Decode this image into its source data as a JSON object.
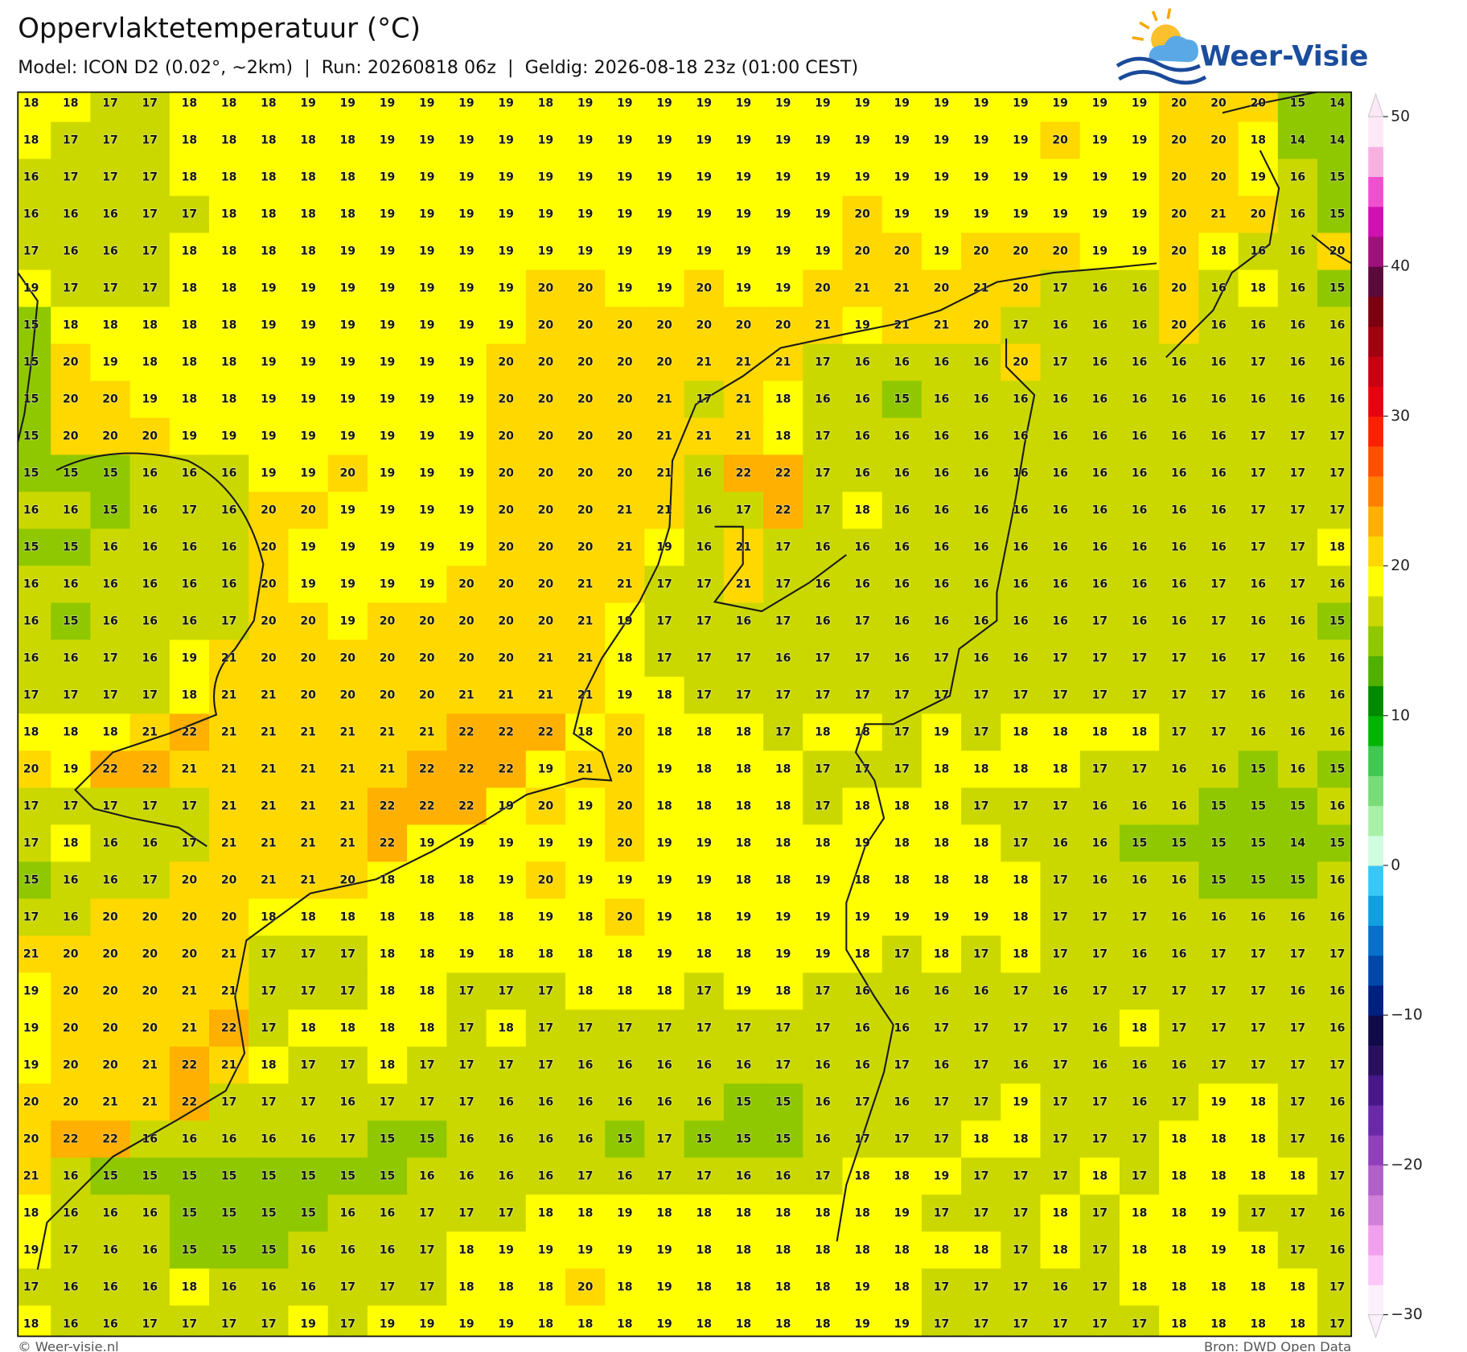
{
  "header": {
    "title": "Oppervlaktetemperatuur (°C)",
    "subtitle": "Model: ICON D2 (0.02°, ~2km)  |  Run: 20260818 06z  |  Geldig: 2026-08-18 23z (01:00 CEST)",
    "logo": "Weer-Visie"
  },
  "map": {
    "type": "grid",
    "values": [
      [
        18,
        18,
        17,
        17,
        18,
        18,
        18,
        19,
        19,
        19,
        19,
        19,
        19,
        18,
        19,
        19,
        19,
        19,
        19,
        19,
        19,
        19,
        19,
        19,
        19,
        19,
        19,
        19,
        19,
        20,
        20,
        20,
        15,
        14
      ],
      [
        18,
        17,
        17,
        17,
        18,
        18,
        18,
        18,
        18,
        19,
        19,
        19,
        19,
        19,
        19,
        19,
        19,
        19,
        19,
        19,
        19,
        19,
        19,
        19,
        19,
        19,
        20,
        19,
        19,
        20,
        20,
        18,
        14,
        14
      ],
      [
        16,
        17,
        17,
        17,
        18,
        18,
        18,
        18,
        18,
        19,
        19,
        19,
        19,
        19,
        19,
        19,
        19,
        19,
        19,
        19,
        19,
        19,
        19,
        19,
        19,
        19,
        19,
        19,
        19,
        20,
        20,
        19,
        16,
        15
      ],
      [
        16,
        16,
        16,
        17,
        17,
        18,
        18,
        18,
        18,
        19,
        19,
        19,
        19,
        19,
        19,
        19,
        19,
        19,
        19,
        19,
        19,
        20,
        19,
        19,
        19,
        19,
        19,
        19,
        19,
        20,
        21,
        20,
        16,
        15
      ],
      [
        17,
        16,
        16,
        17,
        18,
        18,
        18,
        18,
        19,
        19,
        19,
        19,
        19,
        19,
        19,
        19,
        19,
        19,
        19,
        19,
        19,
        20,
        20,
        19,
        20,
        20,
        20,
        19,
        19,
        20,
        18,
        16,
        16,
        20
      ],
      [
        19,
        17,
        17,
        17,
        18,
        18,
        19,
        19,
        19,
        19,
        19,
        19,
        19,
        20,
        20,
        19,
        19,
        20,
        19,
        19,
        20,
        21,
        21,
        20,
        21,
        20,
        17,
        16,
        16,
        20,
        16,
        18,
        16,
        15
      ],
      [
        15,
        18,
        18,
        18,
        18,
        18,
        19,
        19,
        19,
        19,
        19,
        19,
        19,
        20,
        20,
        20,
        20,
        20,
        20,
        20,
        21,
        19,
        21,
        21,
        20,
        17,
        16,
        16,
        16,
        20,
        16,
        16,
        16,
        16
      ],
      [
        15,
        20,
        19,
        18,
        18,
        18,
        19,
        19,
        19,
        19,
        19,
        19,
        20,
        20,
        20,
        20,
        20,
        21,
        21,
        21,
        17,
        16,
        16,
        16,
        16,
        20,
        17,
        16,
        16,
        16,
        16,
        17,
        16,
        16
      ],
      [
        15,
        20,
        20,
        19,
        18,
        18,
        19,
        19,
        19,
        19,
        19,
        19,
        20,
        20,
        20,
        20,
        21,
        17,
        21,
        18,
        16,
        16,
        15,
        16,
        16,
        16,
        16,
        16,
        16,
        16,
        16,
        16,
        16,
        16
      ],
      [
        15,
        20,
        20,
        20,
        19,
        19,
        19,
        19,
        19,
        19,
        19,
        19,
        20,
        20,
        20,
        20,
        21,
        21,
        21,
        18,
        17,
        16,
        16,
        16,
        16,
        16,
        16,
        16,
        16,
        16,
        16,
        17,
        17,
        17
      ],
      [
        15,
        15,
        15,
        16,
        16,
        16,
        19,
        19,
        20,
        19,
        19,
        19,
        20,
        20,
        20,
        20,
        21,
        16,
        22,
        22,
        17,
        16,
        16,
        16,
        16,
        16,
        16,
        16,
        16,
        16,
        16,
        17,
        17,
        17
      ],
      [
        16,
        16,
        15,
        16,
        17,
        16,
        20,
        20,
        19,
        19,
        19,
        19,
        20,
        20,
        20,
        21,
        21,
        16,
        17,
        22,
        17,
        18,
        16,
        16,
        16,
        16,
        16,
        16,
        16,
        16,
        16,
        17,
        17,
        17
      ],
      [
        15,
        15,
        16,
        16,
        16,
        16,
        20,
        19,
        19,
        19,
        19,
        19,
        20,
        20,
        20,
        21,
        19,
        16,
        21,
        17,
        16,
        16,
        16,
        16,
        16,
        16,
        16,
        16,
        16,
        16,
        16,
        17,
        17,
        18
      ],
      [
        16,
        16,
        16,
        16,
        16,
        16,
        20,
        19,
        19,
        19,
        19,
        20,
        20,
        20,
        21,
        21,
        17,
        17,
        21,
        17,
        16,
        16,
        16,
        16,
        16,
        16,
        16,
        16,
        16,
        16,
        17,
        16,
        17,
        16
      ],
      [
        16,
        15,
        16,
        16,
        16,
        17,
        20,
        20,
        19,
        20,
        20,
        20,
        20,
        20,
        21,
        19,
        17,
        17,
        16,
        17,
        16,
        17,
        16,
        16,
        16,
        16,
        16,
        17,
        16,
        16,
        17,
        16,
        16,
        15
      ],
      [
        16,
        16,
        17,
        16,
        19,
        21,
        20,
        20,
        20,
        20,
        20,
        20,
        20,
        21,
        21,
        18,
        17,
        17,
        17,
        16,
        17,
        17,
        16,
        17,
        16,
        16,
        17,
        17,
        17,
        17,
        16,
        17,
        16,
        16
      ],
      [
        17,
        17,
        17,
        17,
        18,
        21,
        21,
        20,
        20,
        20,
        20,
        21,
        21,
        21,
        21,
        19,
        18,
        17,
        17,
        17,
        17,
        17,
        17,
        17,
        17,
        17,
        17,
        17,
        17,
        17,
        17,
        16,
        16,
        16
      ],
      [
        18,
        18,
        18,
        21,
        22,
        21,
        21,
        21,
        21,
        21,
        21,
        22,
        22,
        22,
        18,
        20,
        18,
        18,
        18,
        17,
        18,
        18,
        17,
        19,
        17,
        18,
        18,
        18,
        18,
        17,
        17,
        16,
        16,
        16
      ],
      [
        20,
        19,
        22,
        22,
        21,
        21,
        21,
        21,
        21,
        21,
        22,
        22,
        22,
        19,
        21,
        20,
        19,
        18,
        18,
        18,
        17,
        17,
        17,
        18,
        18,
        18,
        18,
        17,
        17,
        16,
        16,
        15,
        16,
        15
      ],
      [
        17,
        17,
        17,
        17,
        17,
        21,
        21,
        21,
        21,
        22,
        22,
        22,
        19,
        20,
        19,
        20,
        18,
        18,
        18,
        18,
        17,
        18,
        18,
        18,
        17,
        17,
        17,
        16,
        16,
        16,
        15,
        15,
        15,
        16
      ],
      [
        17,
        18,
        16,
        16,
        17,
        21,
        21,
        21,
        21,
        22,
        19,
        19,
        19,
        19,
        19,
        20,
        19,
        19,
        18,
        18,
        18,
        19,
        18,
        18,
        18,
        17,
        16,
        16,
        15,
        15,
        15,
        15,
        14,
        15
      ],
      [
        15,
        16,
        16,
        17,
        20,
        20,
        21,
        21,
        20,
        18,
        18,
        18,
        19,
        20,
        19,
        19,
        19,
        19,
        18,
        18,
        19,
        18,
        18,
        18,
        18,
        18,
        17,
        16,
        16,
        16,
        15,
        15,
        15,
        16
      ],
      [
        17,
        16,
        20,
        20,
        20,
        20,
        18,
        18,
        18,
        18,
        18,
        18,
        18,
        19,
        18,
        20,
        19,
        18,
        19,
        19,
        19,
        19,
        19,
        19,
        19,
        18,
        17,
        17,
        17,
        16,
        16,
        16,
        16,
        16
      ],
      [
        21,
        20,
        20,
        20,
        20,
        21,
        17,
        17,
        17,
        18,
        18,
        19,
        18,
        18,
        18,
        18,
        19,
        18,
        18,
        19,
        19,
        18,
        17,
        18,
        17,
        18,
        17,
        17,
        16,
        16,
        17,
        17,
        17,
        17
      ],
      [
        19,
        20,
        20,
        20,
        21,
        21,
        17,
        17,
        17,
        18,
        18,
        17,
        17,
        17,
        18,
        18,
        18,
        17,
        19,
        18,
        17,
        16,
        16,
        16,
        16,
        17,
        16,
        17,
        17,
        17,
        17,
        17,
        16,
        16
      ],
      [
        19,
        20,
        20,
        20,
        21,
        22,
        17,
        18,
        18,
        18,
        18,
        17,
        18,
        17,
        17,
        17,
        17,
        17,
        17,
        17,
        17,
        16,
        16,
        17,
        17,
        17,
        17,
        16,
        18,
        17,
        17,
        17,
        17,
        16
      ],
      [
        19,
        20,
        20,
        21,
        22,
        21,
        18,
        17,
        17,
        18,
        17,
        17,
        17,
        17,
        16,
        16,
        16,
        16,
        16,
        17,
        16,
        16,
        17,
        16,
        17,
        16,
        17,
        16,
        16,
        16,
        17,
        17,
        17,
        17
      ],
      [
        20,
        20,
        21,
        21,
        22,
        17,
        17,
        17,
        16,
        17,
        17,
        17,
        16,
        16,
        16,
        16,
        16,
        16,
        15,
        15,
        16,
        17,
        16,
        17,
        17,
        19,
        17,
        17,
        16,
        17,
        19,
        18,
        17,
        16
      ],
      [
        20,
        22,
        22,
        16,
        16,
        16,
        16,
        16,
        17,
        15,
        15,
        16,
        16,
        16,
        16,
        15,
        17,
        15,
        15,
        15,
        16,
        17,
        17,
        17,
        18,
        18,
        17,
        17,
        17,
        18,
        18,
        18,
        17,
        16
      ],
      [
        21,
        16,
        15,
        15,
        15,
        15,
        15,
        15,
        15,
        15,
        16,
        16,
        16,
        16,
        17,
        16,
        17,
        17,
        16,
        16,
        17,
        18,
        18,
        19,
        17,
        17,
        17,
        18,
        17,
        18,
        18,
        18,
        18,
        17
      ],
      [
        18,
        16,
        16,
        16,
        15,
        15,
        15,
        15,
        16,
        16,
        17,
        17,
        17,
        18,
        18,
        19,
        18,
        18,
        18,
        18,
        18,
        18,
        19,
        17,
        17,
        17,
        18,
        17,
        18,
        18,
        19,
        17,
        17,
        16
      ],
      [
        19,
        17,
        16,
        16,
        15,
        15,
        15,
        16,
        16,
        16,
        17,
        18,
        19,
        19,
        19,
        19,
        19,
        18,
        18,
        18,
        18,
        18,
        18,
        18,
        18,
        17,
        18,
        17,
        18,
        18,
        19,
        18,
        17,
        16
      ],
      [
        17,
        16,
        16,
        16,
        18,
        16,
        16,
        16,
        17,
        17,
        17,
        18,
        18,
        18,
        20,
        18,
        19,
        18,
        18,
        18,
        18,
        19,
        18,
        17,
        17,
        17,
        16,
        17,
        18,
        18,
        18,
        18,
        18,
        17
      ],
      [
        18,
        16,
        16,
        17,
        17,
        17,
        17,
        19,
        17,
        19,
        19,
        19,
        19,
        18,
        18,
        18,
        19,
        18,
        18,
        18,
        18,
        19,
        19,
        17,
        17,
        17,
        17,
        17,
        17,
        18,
        18,
        18,
        18,
        17
      ]
    ],
    "colorbar": {
      "clim": [
        -30,
        50
      ],
      "ticks": [
        {
          "value": -30,
          "label": "−30"
        },
        {
          "value": -20,
          "label": "−20"
        },
        {
          "value": -10,
          "label": "−10"
        },
        0,
        10,
        20,
        30,
        40,
        50
      ],
      "colors": [
        "#fdf0fd",
        "#fcc8f8",
        "#f0a0ec",
        "#d080d8",
        "#b060c8",
        "#9040b8",
        "#6a2aa8",
        "#481888",
        "#28105e",
        "#100a48",
        "#002080",
        "#0048a8",
        "#0870c8",
        "#10a0e0",
        "#38c8f8",
        "#d0fce0",
        "#a8f0a8",
        "#78dc78",
        "#40c850",
        "#00b400",
        "#008a00",
        "#50b000",
        "#90c800",
        "#cbd800",
        "#ffff00",
        "#ffd800",
        "#ffb000",
        "#ff8000",
        "#ff5000",
        "#ff2000",
        "#e80010",
        "#c80010",
        "#a00010",
        "#7a0010",
        "#5a0a3a",
        "#a0107a",
        "#d010b0",
        "#f050d0",
        "#f8b0e0",
        "#fde8f8"
      ]
    }
  },
  "footer": {
    "left": "© Weer-visie.nl",
    "right": "Bron: DWD Open Data"
  }
}
